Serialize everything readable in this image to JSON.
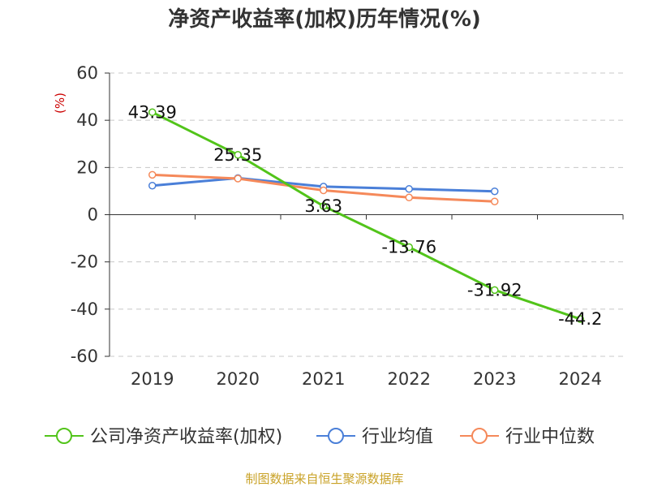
{
  "chart_data": {
    "type": "line",
    "title": "净资产收益率(加权)历年情况(%)",
    "ylabel": "(%)",
    "xlabel": "",
    "categories": [
      "2019",
      "2020",
      "2021",
      "2022",
      "2023",
      "2024"
    ],
    "ylim": [
      -60,
      60
    ],
    "yticks": [
      60,
      40,
      20,
      0,
      -20,
      -40,
      -60
    ],
    "grid": true,
    "legend_position": "bottom",
    "series": [
      {
        "name": "公司净资产收益率(加权)",
        "color": "#52c41a",
        "values": [
          43.39,
          25.35,
          3.63,
          -13.76,
          -31.92,
          -44.2
        ],
        "labels": [
          "43.39",
          "25.35",
          "3.63",
          "-13.76",
          "-31.92",
          "-44.2"
        ]
      },
      {
        "name": "行业均值",
        "color": "#4a7fd8",
        "values": [
          12.3,
          15.5,
          11.9,
          10.9,
          9.9,
          null
        ]
      },
      {
        "name": "行业中位数",
        "color": "#f5895a",
        "values": [
          16.9,
          15.3,
          10.3,
          7.3,
          5.6,
          null
        ]
      }
    ]
  },
  "source": "制图数据来自恒生聚源数据库"
}
